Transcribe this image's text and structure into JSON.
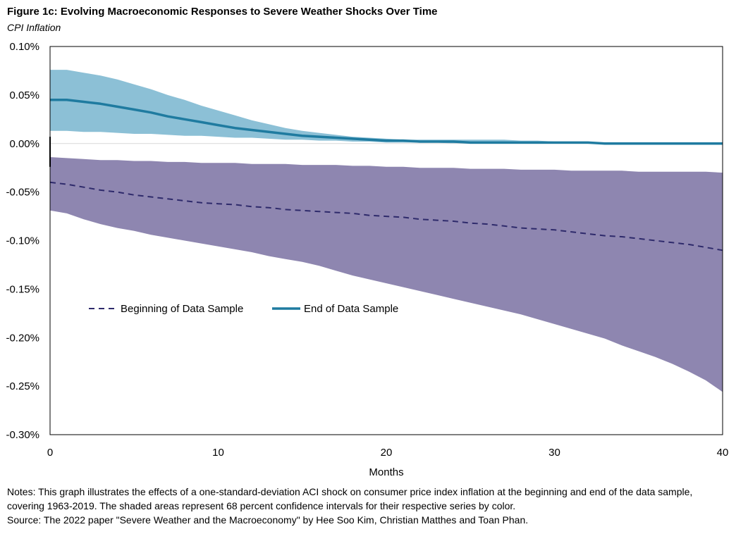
{
  "figure": {
    "title": "Figure 1c: Evolving Macroeconomic Responses to Severe Weather Shocks Over Time",
    "subtitle": "CPI Inflation"
  },
  "notes": {
    "text": "Notes: This graph illustrates the effects of a one-standard-deviation ACI shock on consumer price index inflation at the beginning and end of the data sample, covering 1963-2019.  The shaded areas represent 68 percent confidence intervals for their respective series by color.",
    "source": "Source: The 2022  paper \"Severe Weather and the Macroeconomy\" by Hee Soo Kim, Christian Matthes and Toan Phan."
  },
  "chart_data": {
    "type": "line",
    "title": "Figure 1c: Evolving Macroeconomic Responses to Severe Weather Shocks Over Time",
    "subtitle": "CPI Inflation",
    "xlabel": "Months",
    "ylabel": "",
    "xlim": [
      0,
      40
    ],
    "ylim": [
      -0.3,
      0.1
    ],
    "x_ticks": [
      0,
      10,
      20,
      30,
      40
    ],
    "x_tick_labels": [
      "0",
      "10",
      "20",
      "30",
      "40"
    ],
    "y_ticks": [
      0.1,
      0.05,
      0.0,
      -0.05,
      -0.1,
      -0.15,
      -0.2,
      -0.25,
      -0.3
    ],
    "y_tick_labels": [
      "0.10%",
      "0.05%",
      "0.00%",
      "-0.05%",
      "-0.10%",
      "-0.15%",
      "-0.20%",
      "-0.25%",
      "-0.30%"
    ],
    "grid": false,
    "legend_position": "center-left",
    "x": [
      0,
      1,
      2,
      3,
      4,
      5,
      6,
      7,
      8,
      9,
      10,
      11,
      12,
      13,
      14,
      15,
      16,
      17,
      18,
      19,
      20,
      21,
      22,
      23,
      24,
      25,
      26,
      27,
      28,
      29,
      30,
      31,
      32,
      33,
      34,
      35,
      36,
      37,
      38,
      39,
      40
    ],
    "series": [
      {
        "name": "Beginning of Data Sample",
        "style": "dashed",
        "color": "#2E2A6B",
        "band_color": "#8E86B0",
        "values": [
          -0.04,
          -0.042,
          -0.045,
          -0.048,
          -0.05,
          -0.053,
          -0.055,
          -0.057,
          -0.059,
          -0.061,
          -0.062,
          -0.063,
          -0.065,
          -0.066,
          -0.068,
          -0.069,
          -0.07,
          -0.071,
          -0.072,
          -0.074,
          -0.075,
          -0.076,
          -0.078,
          -0.079,
          -0.08,
          -0.082,
          -0.083,
          -0.085,
          -0.087,
          -0.088,
          -0.089,
          -0.091,
          -0.093,
          -0.095,
          -0.096,
          -0.098,
          -0.1,
          -0.102,
          -0.104,
          -0.107,
          -0.11
        ],
        "lower": [
          -0.069,
          -0.072,
          -0.078,
          -0.083,
          -0.087,
          -0.09,
          -0.094,
          -0.097,
          -0.1,
          -0.103,
          -0.106,
          -0.109,
          -0.112,
          -0.116,
          -0.119,
          -0.122,
          -0.126,
          -0.131,
          -0.136,
          -0.14,
          -0.144,
          -0.148,
          -0.152,
          -0.156,
          -0.16,
          -0.164,
          -0.168,
          -0.172,
          -0.176,
          -0.181,
          -0.186,
          -0.191,
          -0.196,
          -0.201,
          -0.208,
          -0.214,
          -0.22,
          -0.227,
          -0.235,
          -0.244,
          -0.256
        ],
        "upper": [
          -0.014,
          -0.015,
          -0.016,
          -0.017,
          -0.017,
          -0.018,
          -0.018,
          -0.019,
          -0.019,
          -0.02,
          -0.02,
          -0.02,
          -0.021,
          -0.021,
          -0.021,
          -0.022,
          -0.022,
          -0.022,
          -0.023,
          -0.023,
          -0.024,
          -0.024,
          -0.025,
          -0.025,
          -0.025,
          -0.026,
          -0.026,
          -0.026,
          -0.027,
          -0.027,
          -0.027,
          -0.028,
          -0.028,
          -0.028,
          -0.028,
          -0.029,
          -0.029,
          -0.029,
          -0.029,
          -0.029,
          -0.03
        ]
      },
      {
        "name": "End of Data Sample",
        "style": "solid",
        "color": "#1F7BA0",
        "band_color": "#8CC0D6",
        "values": [
          0.045,
          0.045,
          0.043,
          0.041,
          0.038,
          0.035,
          0.032,
          0.028,
          0.025,
          0.022,
          0.019,
          0.016,
          0.014,
          0.012,
          0.01,
          0.008,
          0.007,
          0.006,
          0.005,
          0.004,
          0.003,
          0.003,
          0.002,
          0.002,
          0.002,
          0.001,
          0.001,
          0.001,
          0.001,
          0.001,
          0.001,
          0.001,
          0.001,
          0.0,
          0.0,
          0.0,
          0.0,
          0.0,
          0.0,
          0.0,
          0.0
        ],
        "lower": [
          0.013,
          0.013,
          0.012,
          0.012,
          0.011,
          0.01,
          0.01,
          0.009,
          0.008,
          0.008,
          0.007,
          0.006,
          0.006,
          0.005,
          0.004,
          0.004,
          0.003,
          0.003,
          0.002,
          0.002,
          0.001,
          0.001,
          0.001,
          0.001,
          0.0,
          0.0,
          0.0,
          0.0,
          0.0,
          0.0,
          0.0,
          0.0,
          0.0,
          0.0,
          0.0,
          0.0,
          0.0,
          0.0,
          0.0,
          0.0,
          0.0
        ],
        "upper": [
          0.076,
          0.076,
          0.073,
          0.07,
          0.066,
          0.061,
          0.056,
          0.05,
          0.045,
          0.039,
          0.034,
          0.029,
          0.024,
          0.02,
          0.016,
          0.013,
          0.011,
          0.009,
          0.007,
          0.006,
          0.005,
          0.004,
          0.004,
          0.004,
          0.004,
          0.004,
          0.004,
          0.004,
          0.003,
          0.003,
          0.002,
          0.002,
          0.002,
          0.001,
          0.001,
          0.001,
          0.001,
          0.0,
          0.0,
          0.0,
          0.0
        ]
      }
    ]
  }
}
